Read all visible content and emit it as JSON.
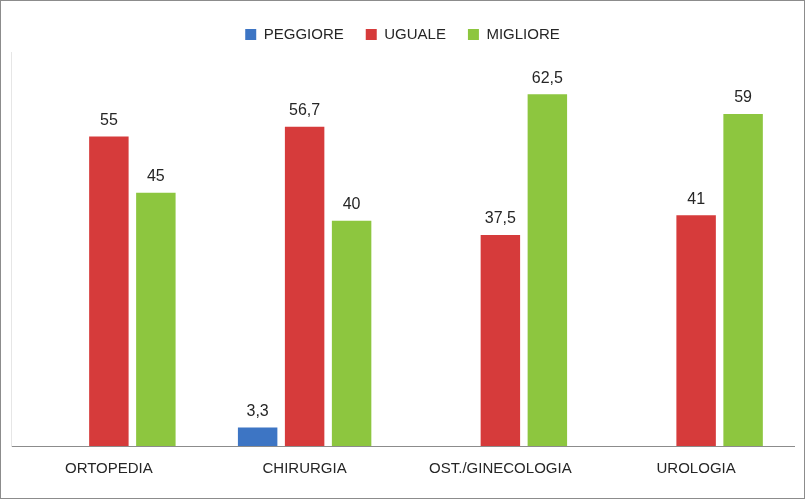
{
  "chart_data": {
    "type": "bar",
    "categories": [
      "ORTOPEDIA",
      "CHIRURGIA",
      "OST./GINECOLOGIA",
      "UROLOGIA"
    ],
    "series": [
      {
        "name": "PEGGIORE",
        "color": "#3d75c4",
        "values": [
          null,
          3.3,
          null,
          null
        ],
        "value_labels": [
          null,
          "3,3",
          null,
          null
        ]
      },
      {
        "name": "UGUALE",
        "color": "#d63b3b",
        "values": [
          55,
          56.7,
          37.5,
          41
        ],
        "value_labels": [
          "55",
          "56,7",
          "37,5",
          "41"
        ]
      },
      {
        "name": "MIGLIORE",
        "color": "#8dc63f",
        "values": [
          45,
          40,
          62.5,
          59
        ],
        "value_labels": [
          "45",
          "40",
          "62,5",
          "59"
        ]
      }
    ],
    "ylim": [
      0,
      70
    ],
    "grid": false,
    "legend": "top",
    "data_labels": true,
    "tick_labels": "x"
  }
}
